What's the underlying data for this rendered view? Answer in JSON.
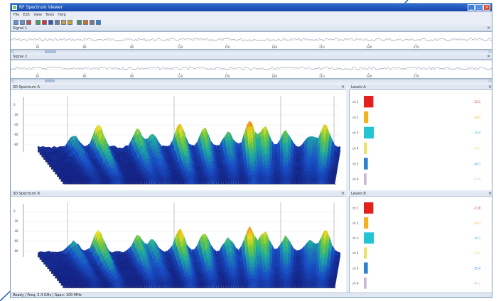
{
  "window": {
    "title": "RF Spectrum Viewer",
    "controls": {
      "minimize": "_",
      "maximize": "□",
      "close": "×"
    }
  },
  "menu": [
    "File",
    "Edit",
    "View",
    "Tools",
    "Help"
  ],
  "toolbar": {
    "buttons": [
      {
        "icon": "open-icon",
        "color": "#6b8fc7"
      },
      {
        "icon": "save-icon",
        "color": "#6b8fc7"
      },
      {
        "icon": "delete-icon",
        "color": "#c74a4a"
      },
      {
        "icon": "play-icon",
        "color": "#4aa14a"
      },
      {
        "icon": "record-icon",
        "color": "#d93434"
      },
      {
        "icon": "stop-icon",
        "color": "#3a55a8"
      },
      {
        "icon": "pause-icon",
        "color": "#6b7c93"
      },
      {
        "icon": "zoom-in-icon",
        "color": "#c9a23a"
      },
      {
        "icon": "zoom-out-icon",
        "color": "#c9a23a"
      },
      {
        "icon": "grid-icon",
        "color": "#4f8f4f"
      },
      {
        "icon": "export-icon",
        "color": "#d96b2a"
      },
      {
        "icon": "print-icon",
        "color": "#7a7a7a"
      },
      {
        "icon": "settings-icon",
        "color": "#2f7fd1"
      }
    ]
  },
  "panels": {
    "waveform1_title": "Signal 1",
    "waveform2_title": "Signal 2",
    "waterfall1_title": "3D Spectrum A",
    "waterfall2_title": "3D Spectrum B",
    "side1_title": "Levels A",
    "side2_title": "Levels B",
    "close": "×"
  },
  "waveform_ticks": [
    "30",
    "60",
    "90",
    "120",
    "150",
    "180",
    "210",
    "240",
    "270"
  ],
  "waterfall_axis": [
    "0",
    "-20",
    "-40",
    "-60",
    "-80"
  ],
  "levels_a": [
    {
      "label": "ch 1",
      "color": "#e3201b",
      "value": "-12.1",
      "level": 0.95
    },
    {
      "label": "ch 2",
      "color": "#f2b21f",
      "value": "-18.5",
      "level": 0.35
    },
    {
      "label": "ch 3",
      "color": "#22c4d6",
      "value": "-10.4",
      "level": 1.0
    },
    {
      "label": "ch 4",
      "color": "#e8e26a",
      "value": "-30.2",
      "level": 0.2
    },
    {
      "label": "ch 5",
      "color": "#2f7fd1",
      "value": "-24.7",
      "level": 0.3
    },
    {
      "label": "ch 6",
      "color": "#c8b8d8",
      "value": "-41.0",
      "level": 0.15
    }
  ],
  "levels_b": [
    {
      "label": "ch 1",
      "color": "#e3201b",
      "value": "-11.8",
      "level": 0.95
    },
    {
      "label": "ch 2",
      "color": "#f2b21f",
      "value": "-19.3",
      "level": 0.35
    },
    {
      "label": "ch 3",
      "color": "#22c4d6",
      "value": "-10.1",
      "level": 1.0
    },
    {
      "label": "ch 4",
      "color": "#e8e26a",
      "value": "-29.6",
      "level": 0.2
    },
    {
      "label": "ch 5",
      "color": "#2f7fd1",
      "value": "-25.4",
      "level": 0.3
    },
    {
      "label": "ch 6",
      "color": "#c8b8d8",
      "value": "-40.2",
      "level": 0.15
    }
  ],
  "status": "Ready   |   Freq: 2.4 GHz   |   Span: 100 MHz"
}
